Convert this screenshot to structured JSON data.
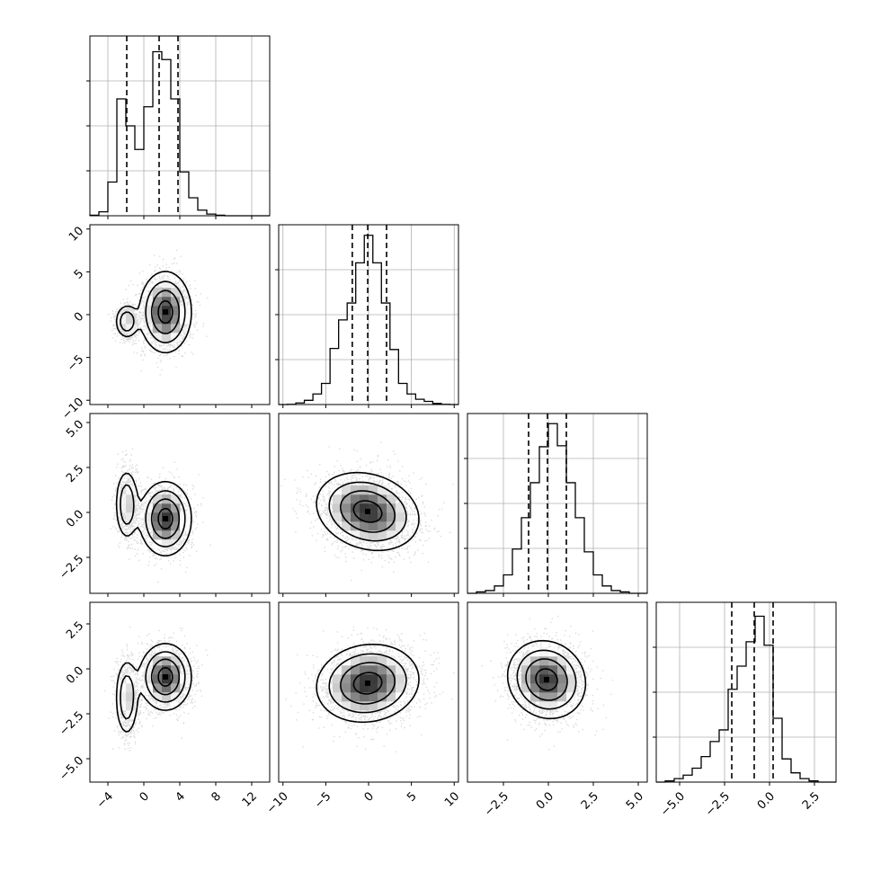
{
  "chart_data": {
    "type": "corner",
    "grid": true,
    "parameters": [
      {
        "range": [
          -6,
          14
        ],
        "ticks": [
          -4,
          0,
          4,
          8,
          12
        ],
        "tick_labels": [
          "−4",
          "0",
          "4",
          "8",
          "12"
        ],
        "hist": {
          "edges": [
            -6,
            -5,
            -4,
            -3,
            -2,
            -1,
            0,
            1,
            2,
            3,
            4,
            5,
            6,
            7,
            8,
            9,
            10,
            11,
            12,
            13,
            14
          ],
          "counts": [
            0.5,
            3.5,
            30,
            104,
            80,
            59,
            97,
            146,
            139,
            104,
            39,
            16,
            5,
            1.5,
            0.5,
            0,
            0,
            0,
            0,
            0
          ],
          "ymax": 160
        },
        "quantiles": [
          -1.9,
          1.7,
          3.8
        ],
        "modes": [
          [
            -2.0,
            -0.8,
            1.6
          ],
          [
            2.4,
            0.6,
            3.0
          ]
        ]
      },
      {
        "range": [
          -10.5,
          10.5
        ],
        "ticks": [
          -10,
          -5,
          0,
          5,
          10
        ],
        "tick_labels": [
          "−10",
          "−5",
          "0",
          "5",
          "10"
        ],
        "hist": {
          "edges": [
            -10.5,
            -9.5,
            -8.5,
            -7.5,
            -6.5,
            -5.5,
            -4.5,
            -3.5,
            -2.5,
            -1.5,
            -0.5,
            0.5,
            1.5,
            2.5,
            3.5,
            4.5,
            5.5,
            6.5,
            7.5,
            8.5,
            9.5,
            10.5
          ],
          "counts": [
            0,
            0.2,
            1.5,
            4,
            10,
            20,
            53,
            80,
            96,
            134,
            160,
            134,
            96,
            52,
            20,
            10,
            5,
            3,
            1,
            0.2,
            0
          ],
          "ymax": 170
        },
        "quantiles": [
          -1.9,
          -0.1,
          2.1
        ]
      },
      {
        "range": [
          -4.5,
          5.5
        ],
        "ticks": [
          -2.5,
          0.0,
          2.5,
          5.0
        ],
        "tick_labels": [
          "−2.5",
          "0.0",
          "2.5",
          "5.0"
        ],
        "hist": {
          "edges": [
            -4.5,
            -4.0,
            -3.5,
            -3.0,
            -2.5,
            -2.0,
            -1.5,
            -1.0,
            -0.5,
            0.0,
            0.5,
            1.0,
            1.5,
            2.0,
            2.5,
            3.0,
            3.5,
            4.0,
            4.5,
            5.0,
            5.5
          ],
          "counts": [
            0,
            1.5,
            3,
            8,
            20,
            48,
            82,
            120,
            159,
            184,
            160,
            120,
            82,
            45,
            20,
            8,
            3,
            1.5,
            0,
            0
          ],
          "ymax": 195
        },
        "quantiles": [
          -1.1,
          -0.05,
          1.0
        ]
      },
      {
        "range": [
          -6.3,
          3.7
        ],
        "ticks": [
          -5.0,
          -2.5,
          0.0,
          2.5
        ],
        "tick_labels": [
          "−5.0",
          "−2.5",
          "0.0",
          "2.5"
        ],
        "hist": {
          "edges": [
            -6.3,
            -5.8,
            -5.3,
            -4.8,
            -4.3,
            -3.8,
            -3.3,
            -2.8,
            -2.3,
            -1.8,
            -1.3,
            -0.8,
            -0.3,
            0.2,
            0.7,
            1.2,
            1.7,
            2.2,
            2.7,
            3.2,
            3.7
          ],
          "counts": [
            0,
            1,
            3,
            6,
            12,
            22,
            35,
            45,
            80,
            100,
            121,
            143,
            118,
            55,
            20,
            8,
            3,
            1,
            0,
            0
          ],
          "ymax": 155
        },
        "quantiles": [
          -2.1,
          -0.85,
          0.2
        ]
      }
    ],
    "left_ticks": {
      "1": {
        "ticks": [
          -10,
          -5,
          0,
          5,
          10
        ],
        "tick_labels": [
          "−10",
          "−5",
          "0",
          "5",
          "10"
        ]
      },
      "2": {
        "ticks": [
          -2.5,
          0.0,
          2.5,
          5.0
        ],
        "tick_labels": [
          "−2.5",
          "0.0",
          "2.5",
          "5.0"
        ]
      },
      "3": {
        "ticks": [
          -5.0,
          -2.5,
          0.0,
          2.5
        ],
        "tick_labels": [
          "−5.0",
          "−2.5",
          "0.0",
          "2.5"
        ]
      }
    },
    "panels_2d": [
      {
        "col": 0,
        "row": 1,
        "modes": [
          {
            "cx": -1.9,
            "cy": -0.8,
            "sx": 0.65,
            "sy": 1.0,
            "r": 0,
            "w": 0.35
          },
          {
            "cx": 2.4,
            "cy": 0.3,
            "sx": 1.4,
            "sy": 2.3,
            "r": 0,
            "w": 0.65
          }
        ],
        "contour_levels": [
          0.12,
          0.3,
          0.55,
          0.85
        ]
      },
      {
        "col": 0,
        "row": 2,
        "modes": [
          {
            "cx": -1.9,
            "cy": 0.45,
            "sx": 0.65,
            "sy": 1.0,
            "r": 0,
            "w": 0.35
          },
          {
            "cx": 2.4,
            "cy": -0.35,
            "sx": 1.4,
            "sy": 1.0,
            "r": 0,
            "w": 0.65
          }
        ],
        "contour_levels": [
          0.12,
          0.3,
          0.55,
          0.85
        ]
      },
      {
        "col": 1,
        "row": 2,
        "modes": [
          {
            "cx": -0.1,
            "cy": 0.05,
            "sx": 2.9,
            "sy": 1.05,
            "r": -0.2,
            "w": 1.0
          }
        ],
        "contour_levels": [
          0.12,
          0.3,
          0.55,
          0.85
        ]
      },
      {
        "col": 0,
        "row": 3,
        "modes": [
          {
            "cx": -1.9,
            "cy": -1.6,
            "sx": 0.65,
            "sy": 1.1,
            "r": 0,
            "w": 0.35
          },
          {
            "cx": 2.4,
            "cy": -0.45,
            "sx": 1.4,
            "sy": 0.9,
            "r": 0,
            "w": 0.65
          }
        ],
        "contour_levels": [
          0.12,
          0.3,
          0.55,
          0.85
        ]
      },
      {
        "col": 1,
        "row": 3,
        "modes": [
          {
            "cx": -0.1,
            "cy": -0.8,
            "sx": 2.9,
            "sy": 1.05,
            "r": 0.1,
            "w": 1.0
          }
        ],
        "contour_levels": [
          0.12,
          0.3,
          0.55,
          0.85
        ]
      },
      {
        "col": 2,
        "row": 3,
        "modes": [
          {
            "cx": -0.1,
            "cy": -0.6,
            "sx": 1.05,
            "sy": 1.05,
            "r": -0.1,
            "w": 1.0
          }
        ],
        "contour_levels": [
          0.12,
          0.3,
          0.55,
          0.85
        ]
      }
    ]
  }
}
